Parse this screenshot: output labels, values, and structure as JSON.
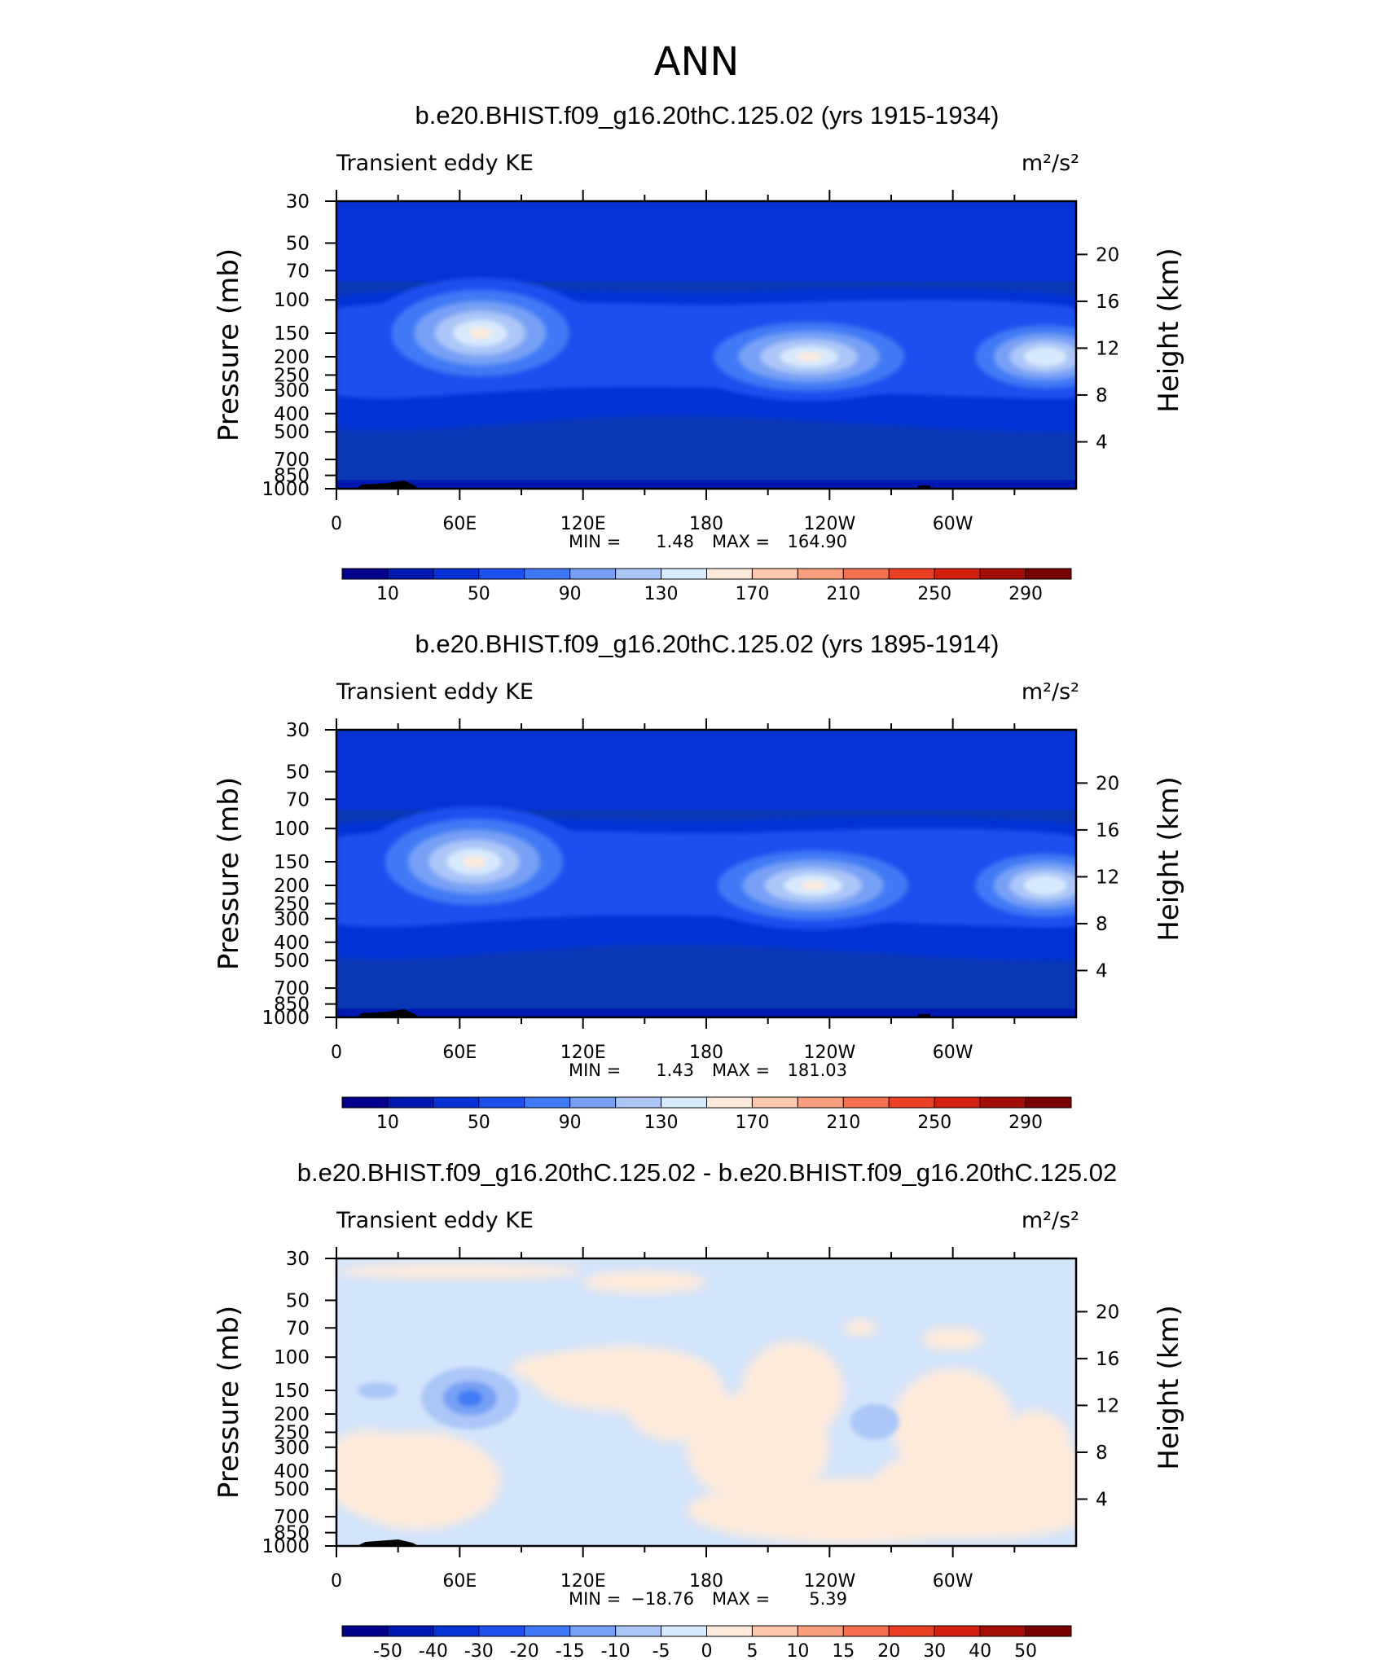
{
  "main_title": "ANN",
  "colors": {
    "panel_bg_abs": "#0a37b4",
    "panel_bg_diff": "#d3e5fb",
    "terrain": "#000000"
  },
  "colorbar_abs": {
    "labels": [
      "10",
      "50",
      "90",
      "130",
      "170",
      "210",
      "250",
      "290"
    ],
    "colors": [
      "#00008c",
      "#0018b2",
      "#0631d5",
      "#1e50ee",
      "#4079f5",
      "#77a0f5",
      "#acc6f7",
      "#d8eafd",
      "#feeada",
      "#fdc8ad",
      "#f99f7e",
      "#f36f4e",
      "#ea3f23",
      "#d4200f",
      "#a20d06",
      "#760100"
    ]
  },
  "colorbar_diff": {
    "labels": [
      "-50",
      "-40",
      "-30",
      "-20",
      "-15",
      "-10",
      "-5",
      "0",
      "5",
      "10",
      "15",
      "20",
      "30",
      "40",
      "50"
    ],
    "colors": [
      "#00008c",
      "#0018b2",
      "#0631d5",
      "#1e50ee",
      "#4079f5",
      "#77a0f5",
      "#acc6f7",
      "#d8eafd",
      "#feeada",
      "#fdc8ad",
      "#f99f7e",
      "#f36f4e",
      "#ea3f23",
      "#d4200f",
      "#a20d06",
      "#760100"
    ]
  },
  "panels": [
    {
      "title": "b.e20.BHIST.f09_g16.20thC.125.02 (yrs 1915-1934)",
      "left_label": "Transient eddy KE",
      "unit": "m²/s²",
      "min_label": "MIN =",
      "min_value": "1.48",
      "max_label": "MAX =",
      "max_value": "164.90"
    },
    {
      "title": "b.e20.BHIST.f09_g16.20thC.125.02 (yrs 1895-1914)",
      "left_label": "Transient eddy KE",
      "unit": "m²/s²",
      "min_label": "MIN =",
      "min_value": "1.43",
      "max_label": "MAX =",
      "max_value": "181.03"
    },
    {
      "title": "b.e20.BHIST.f09_g16.20thC.125.02 - b.e20.BHIST.f09_g16.20thC.125.02",
      "left_label": "Transient eddy KE",
      "unit": "m²/s²",
      "min_label": "MIN =",
      "min_value": "−18.76",
      "max_label": "MAX =",
      "max_value": "5.39"
    }
  ],
  "chart_data": [
    {
      "type": "heatmap",
      "title": "b.e20.BHIST.f09_g16.20thC.125.02 (yrs 1915-1934)",
      "field": "Transient eddy KE",
      "units": "m²/s²",
      "ylabel": "Pressure (mb)",
      "y2label": "Height (km)",
      "x_ticks": [
        "0",
        "60E",
        "120E",
        "180",
        "120W",
        "60W"
      ],
      "y_ticks": [
        "30",
        "50",
        "70",
        "100",
        "150",
        "200",
        "250",
        "300",
        "400",
        "500",
        "700",
        "850",
        "1000"
      ],
      "y2_ticks": [
        "20",
        "16",
        "12",
        "8",
        "4"
      ],
      "min": 1.48,
      "max": 164.9,
      "jets": [
        {
          "lon": 70,
          "p": 150,
          "peak_value": 165
        },
        {
          "lon": 230,
          "p": 200,
          "peak_value": 160
        },
        {
          "lon": 345,
          "p": 200,
          "peak_value": 140
        }
      ]
    },
    {
      "type": "heatmap",
      "title": "b.e20.BHIST.f09_g16.20thC.125.02 (yrs 1895-1914)",
      "field": "Transient eddy KE",
      "units": "m²/s²",
      "ylabel": "Pressure (mb)",
      "y2label": "Height (km)",
      "x_ticks": [
        "0",
        "60E",
        "120E",
        "180",
        "120W",
        "60W"
      ],
      "y_ticks": [
        "30",
        "50",
        "70",
        "100",
        "150",
        "200",
        "250",
        "300",
        "400",
        "500",
        "700",
        "850",
        "1000"
      ],
      "y2_ticks": [
        "20",
        "16",
        "12",
        "8",
        "4"
      ],
      "min": 1.43,
      "max": 181.03,
      "jets": [
        {
          "lon": 67,
          "p": 150,
          "peak_value": 181
        },
        {
          "lon": 232,
          "p": 200,
          "peak_value": 165
        },
        {
          "lon": 345,
          "p": 200,
          "peak_value": 140
        }
      ]
    },
    {
      "type": "heatmap",
      "title": "b.e20.BHIST.f09_g16.20thC.125.02 - b.e20.BHIST.f09_g16.20thC.125.02",
      "field": "Transient eddy KE",
      "units": "m²/s²",
      "ylabel": "Pressure (mb)",
      "y2label": "Height (km)",
      "x_ticks": [
        "0",
        "60E",
        "120E",
        "180",
        "120W",
        "60W"
      ],
      "y_ticks": [
        "30",
        "50",
        "70",
        "100",
        "150",
        "200",
        "250",
        "300",
        "400",
        "500",
        "700",
        "850",
        "1000"
      ],
      "y2_ticks": [
        "20",
        "16",
        "12",
        "8",
        "4"
      ],
      "min": -18.76,
      "max": 5.39
    }
  ]
}
